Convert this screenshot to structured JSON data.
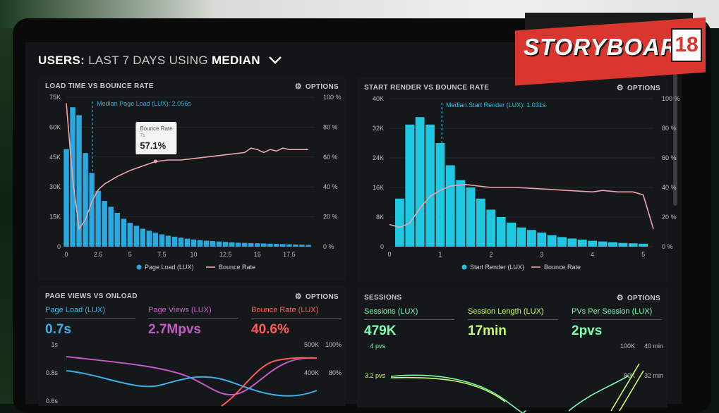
{
  "header": {
    "users_label": "USERS:",
    "range_label": "LAST 7 DAYS",
    "using_label": "USING",
    "median_label": "MEDIAN"
  },
  "logo": {
    "text": "STORYBOARD",
    "number": "18"
  },
  "panels": {
    "load_time": {
      "title": "LOAD TIME VS BOUNCE RATE",
      "options": "OPTIONS",
      "median_annotation": "Median Page Load (LUX): 2.056s",
      "tooltip_label": "Bounce Rate",
      "tooltip_sub": "7s",
      "tooltip_value": "57.1%",
      "left_ticks": [
        "75K",
        "60K",
        "45K",
        "30K",
        "15K",
        "0"
      ],
      "right_ticks": [
        "100 %",
        "80 %",
        "60 %",
        "40 %",
        "20 %",
        "0 %"
      ],
      "x_ticks": [
        "0",
        "2.5",
        "5",
        "7.5",
        "10",
        "12.5",
        "15",
        "17.5"
      ],
      "legend": [
        "Page Load (LUX)",
        "Bounce Rate"
      ]
    },
    "start_render": {
      "title": "START RENDER VS BOUNCE RATE",
      "options": "OPTIONS",
      "median_annotation": "Median Start Render (LUX): 1.031s",
      "left_ticks": [
        "40K",
        "32K",
        "24K",
        "16K",
        "8K",
        "0"
      ],
      "right_ticks": [
        "100 %",
        "80 %",
        "60 %",
        "40 %",
        "20 %",
        "0 %"
      ],
      "x_ticks": [
        "0",
        "1",
        "2",
        "3",
        "4",
        "5"
      ],
      "legend": [
        "Start Render (LUX)",
        "Bounce Rate"
      ]
    },
    "page_views": {
      "title": "PAGE VIEWS VS ONLOAD",
      "options": "OPTIONS",
      "metrics": [
        {
          "label": "Page Load (LUX)",
          "value": "0.7s"
        },
        {
          "label": "Page Views (LUX)",
          "value": "2.7Mpvs"
        },
        {
          "label": "Bounce Rate (LUX)",
          "value": "40.6%"
        }
      ],
      "left_ticks": [
        "1s",
        "0.8s",
        "0.6s"
      ],
      "right_ticks_a": [
        "500K",
        "400K"
      ],
      "right_ticks_b": [
        "100%",
        "80%"
      ]
    },
    "sessions": {
      "title": "SESSIONS",
      "options": "OPTIONS",
      "metrics": [
        {
          "label": "Sessions (LUX)",
          "value": "479K"
        },
        {
          "label": "Session Length (LUX)",
          "value": "17min"
        },
        {
          "label": "PVs Per Session (LUX)",
          "value": "2pvs"
        }
      ],
      "left_ticks": [
        "4 pvs",
        "3.2 pvs"
      ],
      "right_ticks_a": [
        "100K",
        "80K"
      ],
      "right_ticks_b": [
        "40 min",
        "32 min"
      ]
    }
  },
  "colors": {
    "bar": "#29a9e0",
    "bar_cyan": "#1ec8e0",
    "bounce_line": "#f0a3ad",
    "accent_blue": "#3ab0ea",
    "accent_purple": "#c45ac4",
    "accent_red": "#ff5a5a",
    "accent_green": "#7dffb0",
    "accent_lime": "#c8ff6a",
    "brand_red": "#d9362f"
  },
  "chart_data": [
    {
      "type": "bar",
      "title": "LOAD TIME VS BOUNCE RATE",
      "x_range": [
        0,
        19.5
      ],
      "ylim": [
        0,
        75000
      ],
      "y2lim": [
        0,
        100
      ],
      "bin_width": 0.5,
      "series": [
        {
          "name": "Page Load (LUX)",
          "kind": "bar",
          "x": [
            0,
            0.5,
            1,
            1.5,
            2,
            2.5,
            3,
            3.5,
            4,
            4.5,
            5,
            5.5,
            6,
            6.5,
            7,
            7.5,
            8,
            8.5,
            9,
            9.5,
            10,
            10.5,
            11,
            11.5,
            12,
            12.5,
            13,
            13.5,
            14,
            14.5,
            15,
            15.5,
            16,
            16.5,
            17,
            17.5,
            18,
            18.5,
            19
          ],
          "values": [
            49000,
            70000,
            66000,
            47000,
            37000,
            28000,
            23000,
            20000,
            17000,
            14000,
            12000,
            10500,
            9000,
            8000,
            7000,
            6200,
            5500,
            5000,
            4500,
            4000,
            3600,
            3300,
            3000,
            2800,
            2600,
            2400,
            2200,
            2000,
            1900,
            1800,
            1700,
            1600,
            1500,
            1400,
            1300,
            1200,
            1100,
            1000,
            900
          ]
        },
        {
          "name": "Bounce Rate",
          "kind": "line",
          "x": [
            0,
            0.5,
            1,
            1.5,
            2,
            2.5,
            3,
            4,
            5,
            6,
            7,
            8,
            9,
            10,
            11,
            12,
            13,
            14,
            14.5,
            15,
            15.5,
            16,
            16.5,
            17,
            17.5,
            18,
            19
          ],
          "values": [
            96,
            45,
            12,
            18,
            30,
            38,
            42,
            47,
            51,
            54,
            57,
            58,
            58,
            59,
            60,
            61,
            62,
            63,
            66,
            65,
            63,
            65,
            64,
            66,
            65,
            65,
            65
          ]
        }
      ]
    },
    {
      "type": "bar",
      "title": "START RENDER VS BOUNCE RATE",
      "x_range": [
        0,
        5.2
      ],
      "ylim": [
        0,
        40000
      ],
      "y2lim": [
        0,
        100
      ],
      "bin_width": 0.2,
      "series": [
        {
          "name": "Start Render (LUX)",
          "kind": "bar",
          "x": [
            0.2,
            0.4,
            0.6,
            0.8,
            1.0,
            1.2,
            1.4,
            1.6,
            1.8,
            2.0,
            2.2,
            2.4,
            2.6,
            2.8,
            3.0,
            3.2,
            3.4,
            3.6,
            3.8,
            4.0,
            4.2,
            4.4,
            4.6,
            4.8,
            5.0
          ],
          "values": [
            13000,
            33000,
            35000,
            33000,
            28000,
            22000,
            18000,
            16000,
            13000,
            10000,
            8000,
            6500,
            5200,
            4500,
            3800,
            3100,
            2600,
            2200,
            1900,
            1600,
            1400,
            1200,
            1000,
            900,
            800
          ]
        },
        {
          "name": "Bounce Rate",
          "kind": "line",
          "x": [
            0,
            0.2,
            0.4,
            0.6,
            0.8,
            1.0,
            1.2,
            1.5,
            2,
            2.5,
            3,
            3.5,
            4,
            4.2,
            4.5,
            4.8,
            5.0,
            5.2
          ],
          "values": [
            15,
            13,
            16,
            26,
            34,
            38,
            41,
            42,
            40,
            40,
            39,
            38,
            37,
            38,
            37,
            37,
            35,
            12
          ]
        }
      ]
    }
  ]
}
